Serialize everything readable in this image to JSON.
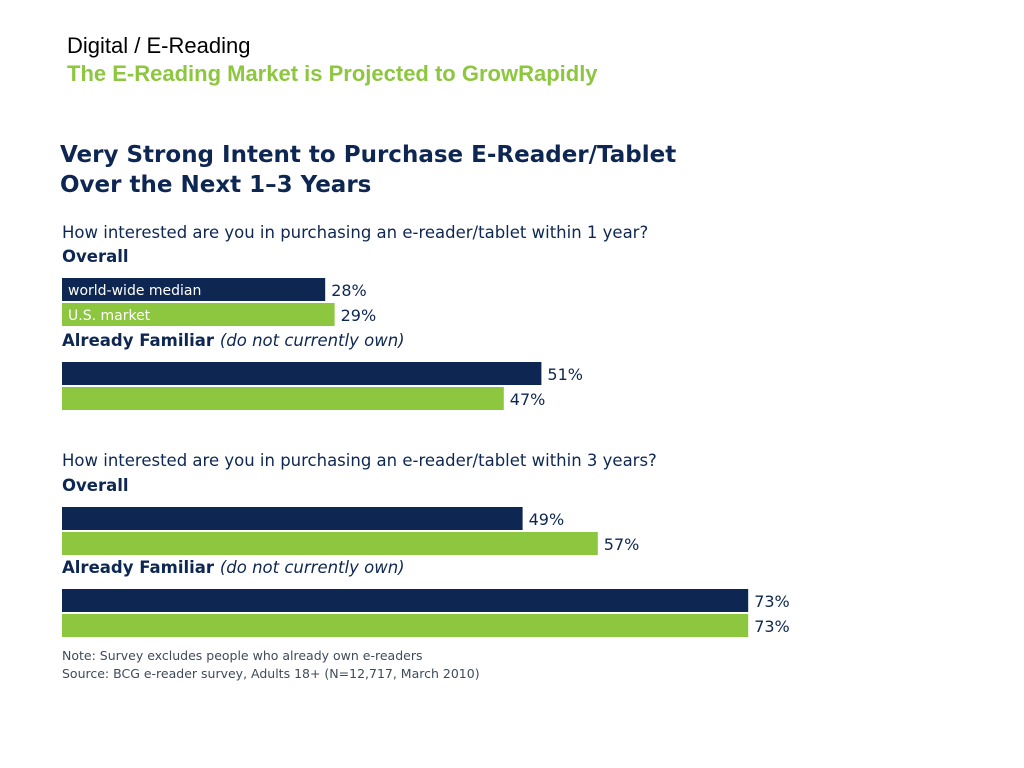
{
  "header": {
    "section": "Digital / E-Reading",
    "title": "The E-Reading Market is Projected to GrowRapidly"
  },
  "chart_data": {
    "type": "bar",
    "orientation": "horizontal",
    "title_lines": [
      "Very Strong Intent to Purchase E-Reader/Tablet",
      "Over the Next 1–3 Years"
    ],
    "unit": "%",
    "xlim": [
      0,
      100
    ],
    "series": [
      {
        "name": "world-wide median",
        "color": "#0e2752"
      },
      {
        "name": "U.S. market",
        "color": "#8dc63f"
      }
    ],
    "panels": [
      {
        "question": "How interested are you in purchasing an e-reader/tablet within 1 year?",
        "groups": [
          {
            "label": "Overall",
            "note": "",
            "values": [
              28,
              29
            ]
          },
          {
            "label": "Already Familiar",
            "note": "(do not currently own)",
            "values": [
              51,
              47
            ]
          }
        ]
      },
      {
        "question": "How interested are you in purchasing an e-reader/tablet within 3 years?",
        "groups": [
          {
            "label": "Overall",
            "note": "",
            "values": [
              49,
              57
            ]
          },
          {
            "label": "Already Familiar",
            "note": "(do not currently own)",
            "values": [
              73,
              73
            ]
          }
        ]
      }
    ],
    "notes": [
      "Note: Survey excludes people who already own e-readers",
      "Source: BCG e-reader survey, Adults 18+ (N=12,717, March 2010)"
    ]
  }
}
